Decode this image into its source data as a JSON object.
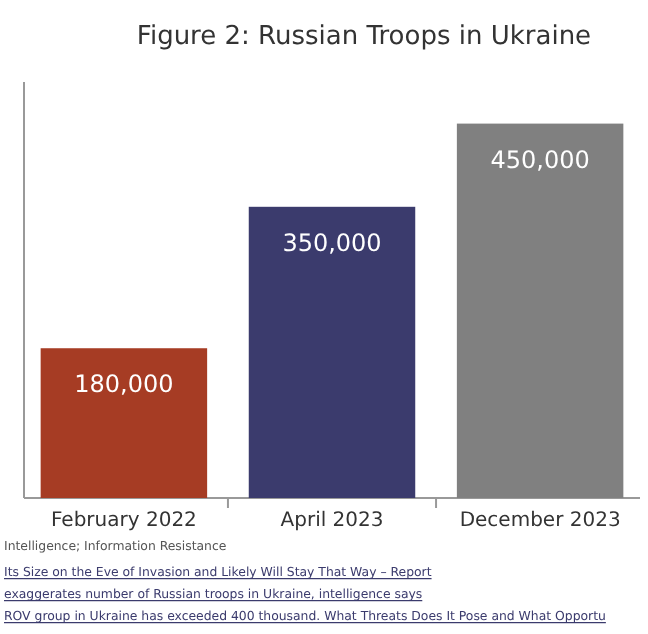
{
  "chart_data": {
    "type": "bar",
    "title": "Figure 2: Russian Troops in Ukraine",
    "categories": [
      "February 2022",
      "April 2023",
      "December 2023"
    ],
    "values": [
      180000,
      350000,
      450000
    ],
    "value_labels": [
      "180,000",
      "350,000",
      "450,000"
    ],
    "colors": [
      "#a63c24",
      "#3b3b6d",
      "#808080"
    ],
    "annotations": [
      "Intelligence; Information Resistance",
      "Its Size on the Eve of Invasion and Likely Will Stay That Way – Report",
      "exaggerates number of Russian troops in Ukraine, intelligence says",
      "ROV group in Ukraine has exceeded 400 thousand. What Threats Does It Pose and What Opportu"
    ]
  }
}
